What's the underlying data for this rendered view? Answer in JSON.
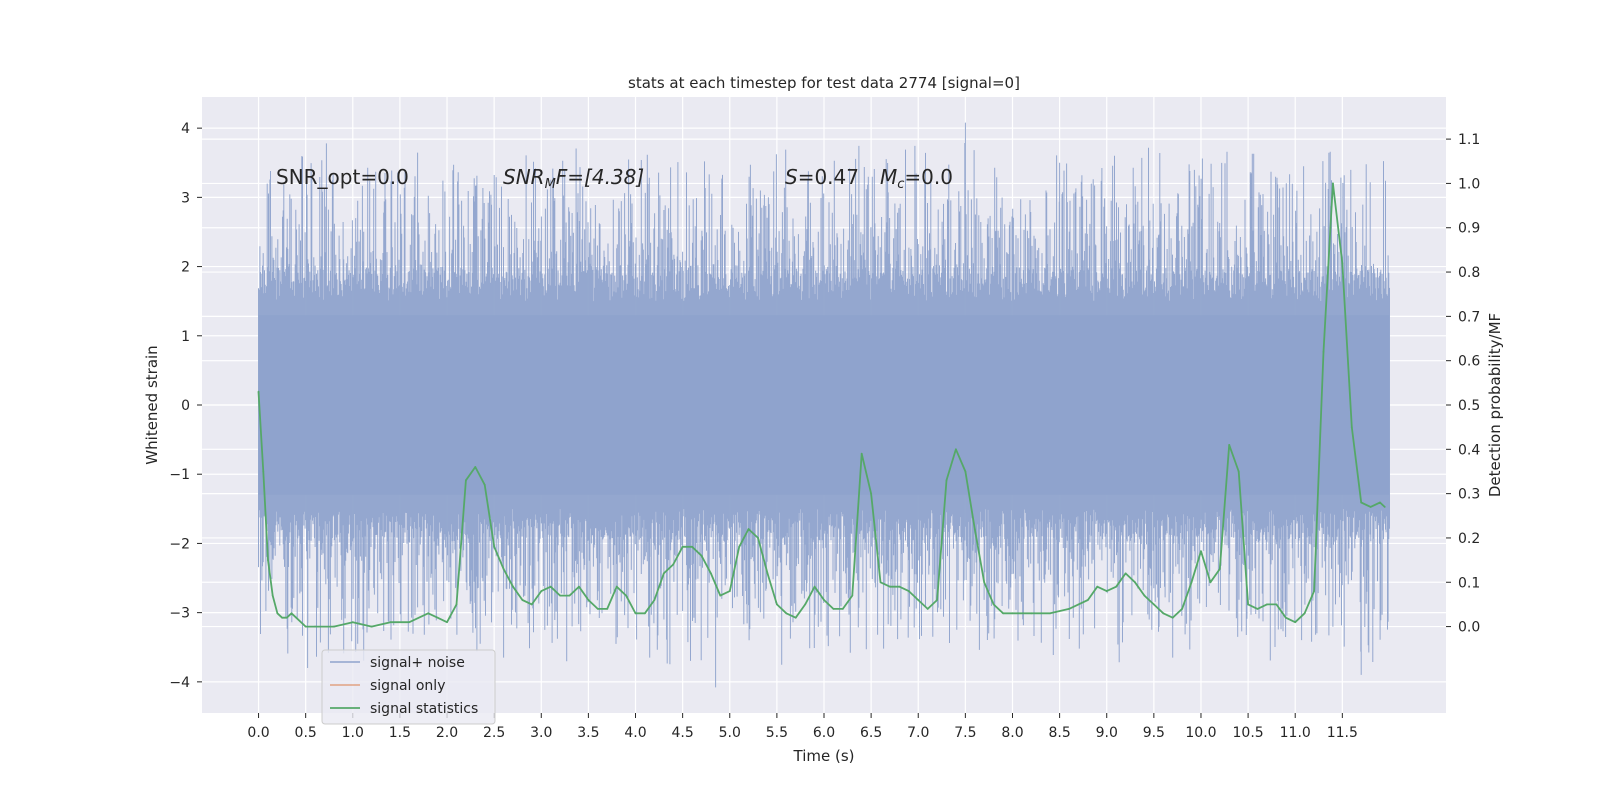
{
  "chart_data": {
    "type": "line",
    "title": "stats at each timestep for test data 2774 [signal=0]",
    "xlabel": "Time (s)",
    "ylabel_left": "Whitened strain",
    "ylabel_right": "Detection probability/MF",
    "xlim": [
      -0.6,
      12.6
    ],
    "ylim_left": [
      -4.45,
      4.45
    ],
    "ylim_right": [
      -0.195,
      1.195
    ],
    "x_ticks": [
      0.0,
      0.5,
      1.0,
      1.5,
      2.0,
      2.5,
      3.0,
      3.5,
      4.0,
      4.5,
      5.0,
      5.5,
      6.0,
      6.5,
      7.0,
      7.5,
      8.0,
      8.5,
      9.0,
      9.5,
      10.0,
      10.5,
      11.0,
      11.5
    ],
    "x_tick_labels": [
      "0.0",
      "0.5",
      "1.0",
      "1.5",
      "2.0",
      "2.5",
      "3.0",
      "3.5",
      "4.0",
      "4.5",
      "5.0",
      "5.5",
      "6.0",
      "6.5",
      "7.0",
      "7.5",
      "8.0",
      "8.5",
      "9.0",
      "9.5",
      "10.0",
      "10.5",
      "11.0",
      "11.5"
    ],
    "y_left_ticks": [
      -4,
      -3,
      -2,
      -1,
      0,
      1,
      2,
      3,
      4
    ],
    "y_left_tick_labels": [
      "−4",
      "−3",
      "−2",
      "−1",
      "0",
      "1",
      "2",
      "3",
      "4"
    ],
    "y_right_ticks": [
      0.0,
      0.1,
      0.2,
      0.3,
      0.4,
      0.5,
      0.6,
      0.7,
      0.8,
      0.9,
      1.0,
      1.1
    ],
    "y_right_tick_labels": [
      "0.0",
      "0.1",
      "0.2",
      "0.3",
      "0.4",
      "0.5",
      "0.6",
      "0.7",
      "0.8",
      "0.9",
      "1.0",
      "1.1"
    ],
    "annotations": {
      "snr_opt": "SNR_opt=0.0",
      "snr_mf_prefix": "SNR",
      "snr_mf_sub": "M",
      "snr_mf_suffix": "F=[4.38]",
      "s_sym": "S",
      "s_val": "=0.47",
      "mc_sym": "M",
      "mc_sub": "c",
      "mc_val": "=0.0"
    },
    "legend": {
      "location": "lower-left",
      "entries": [
        "signal+ noise",
        "signal only",
        "signal statistics"
      ]
    },
    "series": [
      {
        "name": "signal+ noise",
        "axis": "left",
        "color": "#8fa3cc",
        "x_range": [
          0.0,
          12.0
        ],
        "band_min": -1.3,
        "band_max": 1.3,
        "peak_max": 4.08,
        "peak_min": -4.08,
        "notable_spikes": [
          {
            "x": 0.72,
            "y": 3.78
          },
          {
            "x": 7.5,
            "y": 4.08
          },
          {
            "x": 8.5,
            "y": 3.5
          },
          {
            "x": 4.85,
            "y": -4.08
          },
          {
            "x": 11.7,
            "y": -3.9
          },
          {
            "x": 4.15,
            "y": -3.65
          },
          {
            "x": 2.6,
            "y": -3.65
          },
          {
            "x": 9.7,
            "y": -3.65
          },
          {
            "x": 0.52,
            "y": -3.8
          }
        ]
      },
      {
        "name": "signal only",
        "axis": "left",
        "color": "#dd8452",
        "x": [],
        "y": []
      },
      {
        "name": "signal statistics",
        "axis": "right",
        "color": "#55a868",
        "x": [
          0.0,
          0.05,
          0.1,
          0.15,
          0.2,
          0.25,
          0.3,
          0.35,
          0.4,
          0.5,
          0.6,
          0.8,
          1.0,
          1.2,
          1.4,
          1.6,
          1.8,
          1.9,
          2.0,
          2.1,
          2.2,
          2.3,
          2.4,
          2.5,
          2.6,
          2.7,
          2.8,
          2.9,
          3.0,
          3.1,
          3.2,
          3.3,
          3.4,
          3.5,
          3.6,
          3.7,
          3.8,
          3.9,
          4.0,
          4.1,
          4.2,
          4.3,
          4.4,
          4.5,
          4.6,
          4.7,
          4.8,
          4.9,
          5.0,
          5.1,
          5.2,
          5.3,
          5.4,
          5.5,
          5.6,
          5.7,
          5.8,
          5.9,
          6.0,
          6.1,
          6.2,
          6.3,
          6.4,
          6.5,
          6.6,
          6.7,
          6.8,
          6.9,
          7.0,
          7.1,
          7.2,
          7.3,
          7.4,
          7.5,
          7.6,
          7.7,
          7.8,
          7.9,
          8.0,
          8.2,
          8.4,
          8.6,
          8.7,
          8.8,
          8.9,
          9.0,
          9.1,
          9.2,
          9.3,
          9.4,
          9.5,
          9.6,
          9.7,
          9.8,
          9.9,
          10.0,
          10.1,
          10.2,
          10.3,
          10.4,
          10.5,
          10.6,
          10.7,
          10.8,
          10.9,
          11.0,
          11.1,
          11.2,
          11.3,
          11.4,
          11.5,
          11.6,
          11.7,
          11.8,
          11.9,
          11.95
        ],
        "y": [
          0.53,
          0.35,
          0.15,
          0.07,
          0.03,
          0.02,
          0.02,
          0.03,
          0.02,
          0.0,
          0.0,
          0.0,
          0.01,
          0.0,
          0.01,
          0.01,
          0.03,
          0.02,
          0.01,
          0.05,
          0.33,
          0.36,
          0.32,
          0.18,
          0.13,
          0.09,
          0.06,
          0.05,
          0.08,
          0.09,
          0.07,
          0.07,
          0.09,
          0.06,
          0.04,
          0.04,
          0.09,
          0.07,
          0.03,
          0.03,
          0.06,
          0.12,
          0.14,
          0.18,
          0.18,
          0.16,
          0.12,
          0.07,
          0.08,
          0.18,
          0.22,
          0.2,
          0.12,
          0.05,
          0.03,
          0.02,
          0.05,
          0.09,
          0.06,
          0.04,
          0.04,
          0.07,
          0.39,
          0.3,
          0.1,
          0.09,
          0.09,
          0.08,
          0.06,
          0.04,
          0.06,
          0.33,
          0.4,
          0.35,
          0.22,
          0.1,
          0.05,
          0.03,
          0.03,
          0.03,
          0.03,
          0.04,
          0.05,
          0.06,
          0.09,
          0.08,
          0.09,
          0.12,
          0.1,
          0.07,
          0.05,
          0.03,
          0.02,
          0.04,
          0.1,
          0.17,
          0.1,
          0.13,
          0.41,
          0.35,
          0.05,
          0.04,
          0.05,
          0.05,
          0.02,
          0.01,
          0.03,
          0.08,
          0.62,
          1.0,
          0.82,
          0.45,
          0.28,
          0.27,
          0.28,
          0.27
        ]
      }
    ]
  }
}
